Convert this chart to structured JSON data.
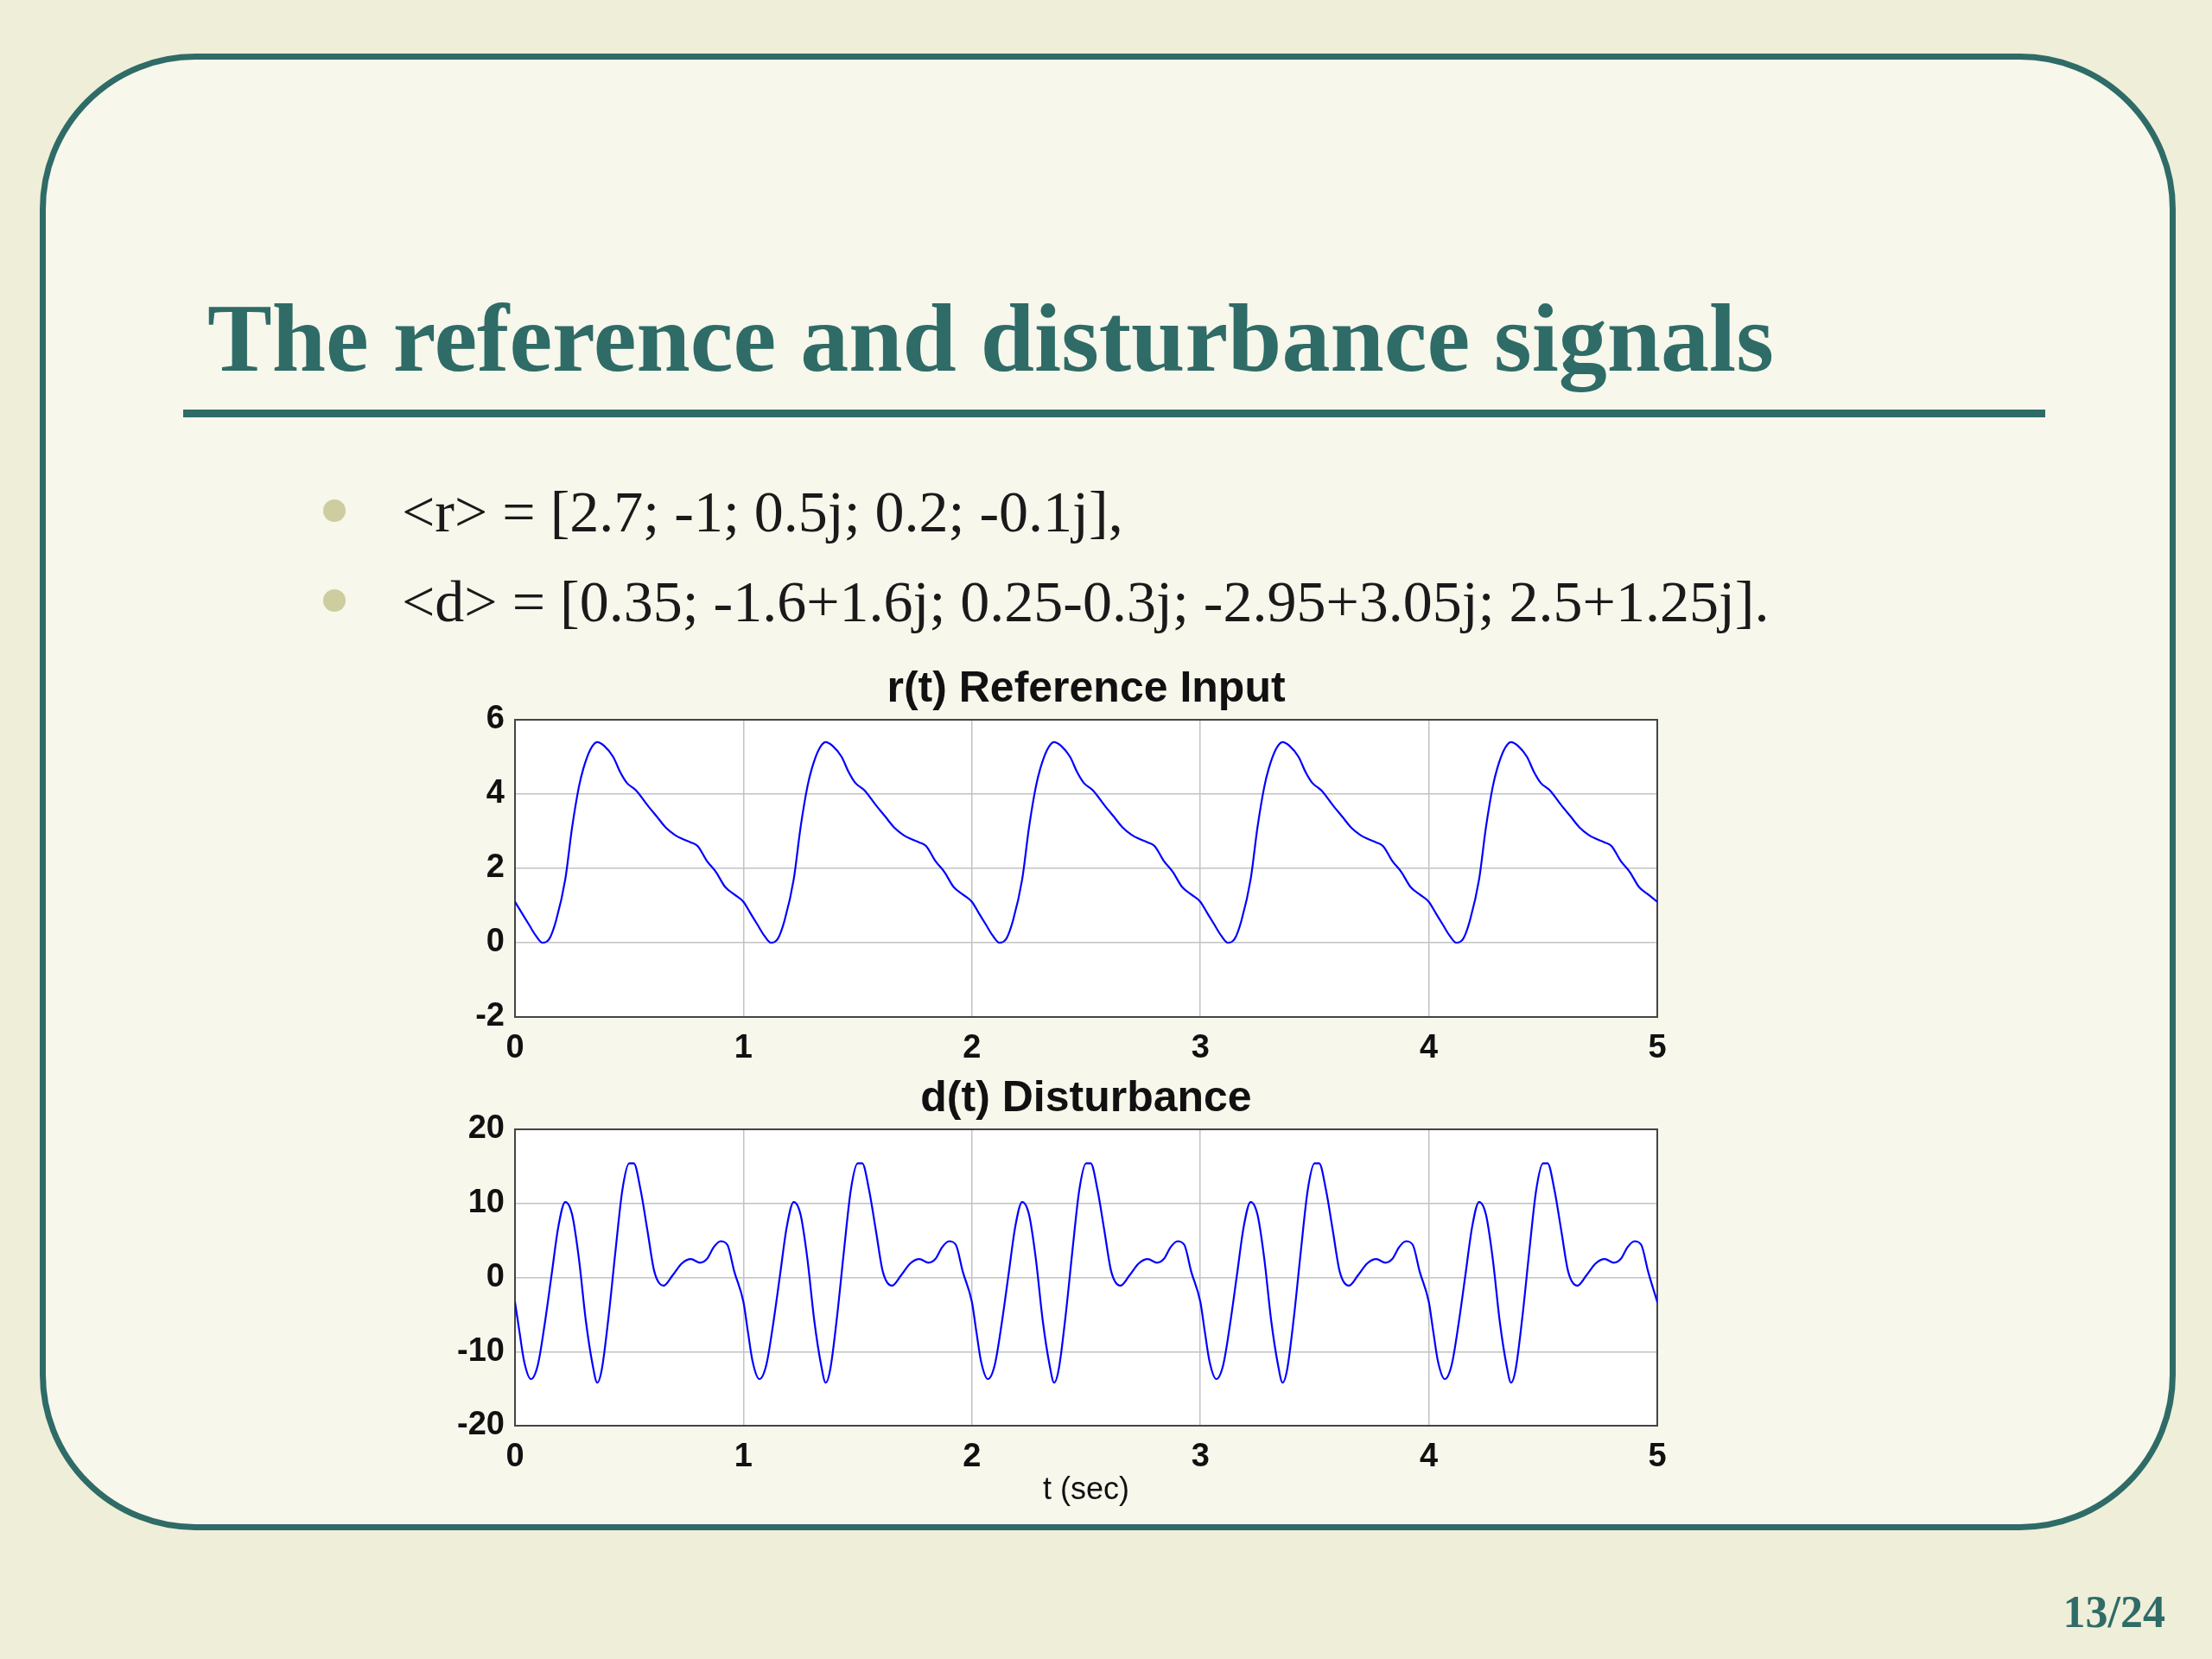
{
  "chart_data": [
    {
      "type": "line",
      "title": "r(t) Reference Input",
      "annotations": [
        "The reference and disturbance signals",
        "<r> = [2.7; -1; 0.5j; 0.2; -0.1j],",
        "<d> = [0.35; -1.6+1.6j; 0.25-0.3j; -2.95+3.05j; 2.5+1.25j]."
      ],
      "x": [
        0,
        0.03,
        0.06,
        0.09,
        0.12,
        0.15,
        0.18,
        0.22,
        0.25,
        0.28,
        0.3,
        0.33,
        0.36,
        0.39,
        0.43,
        0.46,
        0.49,
        0.53,
        0.58,
        0.62,
        0.66,
        0.7,
        0.73,
        0.77,
        0.8,
        0.84,
        0.88,
        0.92,
        0.96,
        1,
        1.03,
        1.06,
        1.09,
        1.12,
        1.15,
        1.18,
        1.22,
        1.25,
        1.28,
        1.3,
        1.33,
        1.36,
        1.39,
        1.43,
        1.46,
        1.49,
        1.53,
        1.58,
        1.62,
        1.66,
        1.7,
        1.73,
        1.77,
        1.8,
        1.84,
        1.88,
        1.92,
        1.96,
        2,
        2.03,
        2.06,
        2.09,
        2.12,
        2.15,
        2.18,
        2.22,
        2.25,
        2.28,
        2.3,
        2.33,
        2.36,
        2.39,
        2.43,
        2.46,
        2.49,
        2.53,
        2.58,
        2.62,
        2.66,
        2.7,
        2.73,
        2.77,
        2.8,
        2.84,
        2.88,
        2.92,
        2.96,
        3,
        3.03,
        3.06,
        3.09,
        3.12,
        3.15,
        3.18,
        3.22,
        3.25,
        3.28,
        3.3,
        3.33,
        3.36,
        3.39,
        3.43,
        3.46,
        3.49,
        3.53,
        3.58,
        3.62,
        3.66,
        3.7,
        3.73,
        3.77,
        3.8,
        3.84,
        3.88,
        3.92,
        3.96,
        4,
        4.03,
        4.06,
        4.09,
        4.12,
        4.15,
        4.18,
        4.22,
        4.25,
        4.28,
        4.3,
        4.33,
        4.36,
        4.39,
        4.43,
        4.46,
        4.49,
        4.53,
        4.58,
        4.62,
        4.66,
        4.7,
        4.73,
        4.77,
        4.8,
        4.84,
        4.88,
        4.92,
        4.96,
        5
      ],
      "values": [
        1.1,
        0.8,
        0.5,
        0.2,
        0,
        0.1,
        0.6,
        1.7,
        3.1,
        4.2,
        4.7,
        5.2,
        5.4,
        5.3,
        5,
        4.6,
        4.3,
        4.1,
        3.7,
        3.4,
        3.1,
        2.9,
        2.8,
        2.7,
        2.6,
        2.2,
        1.9,
        1.5,
        1.3,
        1.1,
        0.8,
        0.5,
        0.2,
        0,
        0.1,
        0.6,
        1.7,
        3.1,
        4.2,
        4.7,
        5.2,
        5.4,
        5.3,
        5,
        4.6,
        4.3,
        4.1,
        3.7,
        3.4,
        3.1,
        2.9,
        2.8,
        2.7,
        2.6,
        2.2,
        1.9,
        1.5,
        1.3,
        1.1,
        0.8,
        0.5,
        0.2,
        0,
        0.1,
        0.6,
        1.7,
        3.1,
        4.2,
        4.7,
        5.2,
        5.4,
        5.3,
        5,
        4.6,
        4.3,
        4.1,
        3.7,
        3.4,
        3.1,
        2.9,
        2.8,
        2.7,
        2.6,
        2.2,
        1.9,
        1.5,
        1.3,
        1.1,
        0.8,
        0.5,
        0.2,
        0,
        0.1,
        0.6,
        1.7,
        3.1,
        4.2,
        4.7,
        5.2,
        5.4,
        5.3,
        5,
        4.6,
        4.3,
        4.1,
        3.7,
        3.4,
        3.1,
        2.9,
        2.8,
        2.7,
        2.6,
        2.2,
        1.9,
        1.5,
        1.3,
        1.1,
        0.8,
        0.5,
        0.2,
        0,
        0.1,
        0.6,
        1.7,
        3.1,
        4.2,
        4.7,
        5.2,
        5.4,
        5.3,
        5,
        4.6,
        4.3,
        4.1,
        3.7,
        3.4,
        3.1,
        2.9,
        2.8,
        2.7,
        2.6,
        2.2,
        1.9,
        1.5,
        1.3,
        1.1
      ],
      "color": "#0000ff",
      "xlim": [
        0,
        5
      ],
      "xticks": [
        0,
        1,
        2,
        3,
        4,
        5
      ],
      "ylim": [
        -2,
        6
      ],
      "yticks": [
        -2,
        0,
        2,
        4,
        6
      ],
      "grid": true
    },
    {
      "type": "line",
      "title": "d(t) Disturbance",
      "xlabel": "t (sec)",
      "annotations": [
        "13/24"
      ],
      "x": [
        0,
        0.02,
        0.04,
        0.07,
        0.1,
        0.13,
        0.16,
        0.19,
        0.22,
        0.25,
        0.28,
        0.31,
        0.34,
        0.36,
        0.38,
        0.41,
        0.44,
        0.47,
        0.5,
        0.52,
        0.55,
        0.58,
        0.61,
        0.65,
        0.69,
        0.73,
        0.77,
        0.81,
        0.84,
        0.87,
        0.9,
        0.93,
        0.96,
        1,
        1.02,
        1.04,
        1.07,
        1.1,
        1.13,
        1.16,
        1.19,
        1.22,
        1.25,
        1.28,
        1.31,
        1.34,
        1.36,
        1.38,
        1.41,
        1.44,
        1.47,
        1.5,
        1.52,
        1.55,
        1.58,
        1.61,
        1.65,
        1.69,
        1.73,
        1.77,
        1.81,
        1.84,
        1.87,
        1.9,
        1.93,
        1.96,
        2,
        2.02,
        2.04,
        2.07,
        2.1,
        2.13,
        2.16,
        2.19,
        2.22,
        2.25,
        2.28,
        2.31,
        2.34,
        2.36,
        2.38,
        2.41,
        2.44,
        2.47,
        2.5,
        2.52,
        2.55,
        2.58,
        2.61,
        2.65,
        2.69,
        2.73,
        2.77,
        2.81,
        2.84,
        2.87,
        2.9,
        2.93,
        2.96,
        3,
        3.02,
        3.04,
        3.07,
        3.1,
        3.13,
        3.16,
        3.19,
        3.22,
        3.25,
        3.28,
        3.31,
        3.34,
        3.36,
        3.38,
        3.41,
        3.44,
        3.47,
        3.5,
        3.52,
        3.55,
        3.58,
        3.61,
        3.65,
        3.69,
        3.73,
        3.77,
        3.81,
        3.84,
        3.87,
        3.9,
        3.93,
        3.96,
        4,
        4.02,
        4.04,
        4.07,
        4.1,
        4.13,
        4.16,
        4.19,
        4.22,
        4.25,
        4.28,
        4.31,
        4.34,
        4.36,
        4.38,
        4.41,
        4.44,
        4.47,
        4.5,
        4.52,
        4.55,
        4.58,
        4.61,
        4.65,
        4.69,
        4.73,
        4.77,
        4.81,
        4.84,
        4.87,
        4.9,
        4.93,
        4.96,
        5
      ],
      "values": [
        -3.3,
        -7.4,
        -11.3,
        -13.7,
        -11.8,
        -6.3,
        0.3,
        6.9,
        10.2,
        8.5,
        2.5,
        -5.8,
        -11.8,
        -14.2,
        -12.4,
        -5.2,
        3.6,
        11.8,
        15.4,
        15.4,
        11.8,
        6.3,
        0.8,
        -1.1,
        0.3,
        1.9,
        2.5,
        2,
        2.5,
        4.1,
        4.9,
        4.4,
        0.8,
        -3.3,
        -7.4,
        -11.3,
        -13.7,
        -11.8,
        -6.3,
        0.3,
        6.9,
        10.2,
        8.5,
        2.5,
        -5.8,
        -11.8,
        -14.2,
        -12.4,
        -5.2,
        3.6,
        11.8,
        15.4,
        15.4,
        11.8,
        6.3,
        0.8,
        -1.1,
        0.3,
        1.9,
        2.5,
        2,
        2.5,
        4.1,
        4.9,
        4.4,
        0.8,
        -3.3,
        -7.4,
        -11.3,
        -13.7,
        -11.8,
        -6.3,
        0.3,
        6.9,
        10.2,
        8.5,
        2.5,
        -5.8,
        -11.8,
        -14.2,
        -12.4,
        -5.2,
        3.6,
        11.8,
        15.4,
        15.4,
        11.8,
        6.3,
        0.8,
        -1.1,
        0.3,
        1.9,
        2.5,
        2,
        2.5,
        4.1,
        4.9,
        4.4,
        0.8,
        -3.3,
        -7.4,
        -11.3,
        -13.7,
        -11.8,
        -6.3,
        0.3,
        6.9,
        10.2,
        8.5,
        2.5,
        -5.8,
        -11.8,
        -14.2,
        -12.4,
        -5.2,
        3.6,
        11.8,
        15.4,
        15.4,
        11.8,
        6.3,
        0.8,
        -1.1,
        0.3,
        1.9,
        2.5,
        2,
        2.5,
        4.1,
        4.9,
        4.4,
        0.8,
        -3.3,
        -7.4,
        -11.3,
        -13.7,
        -11.8,
        -6.3,
        0.3,
        6.9,
        10.2,
        8.5,
        2.5,
        -5.8,
        -11.8,
        -14.2,
        -12.4,
        -5.2,
        3.6,
        11.8,
        15.4,
        15.4,
        11.8,
        6.3,
        0.8,
        -1.1,
        0.3,
        1.9,
        2.5,
        2,
        2.5,
        4.1,
        4.9,
        4.4,
        0.8,
        -3.3
      ],
      "color": "#0000ff",
      "xlim": [
        0,
        5
      ],
      "xticks": [
        0,
        1,
        2,
        3,
        4,
        5
      ],
      "ylim": [
        -20,
        20
      ],
      "yticks": [
        -20,
        -10,
        0,
        10,
        20
      ],
      "grid": true
    }
  ]
}
